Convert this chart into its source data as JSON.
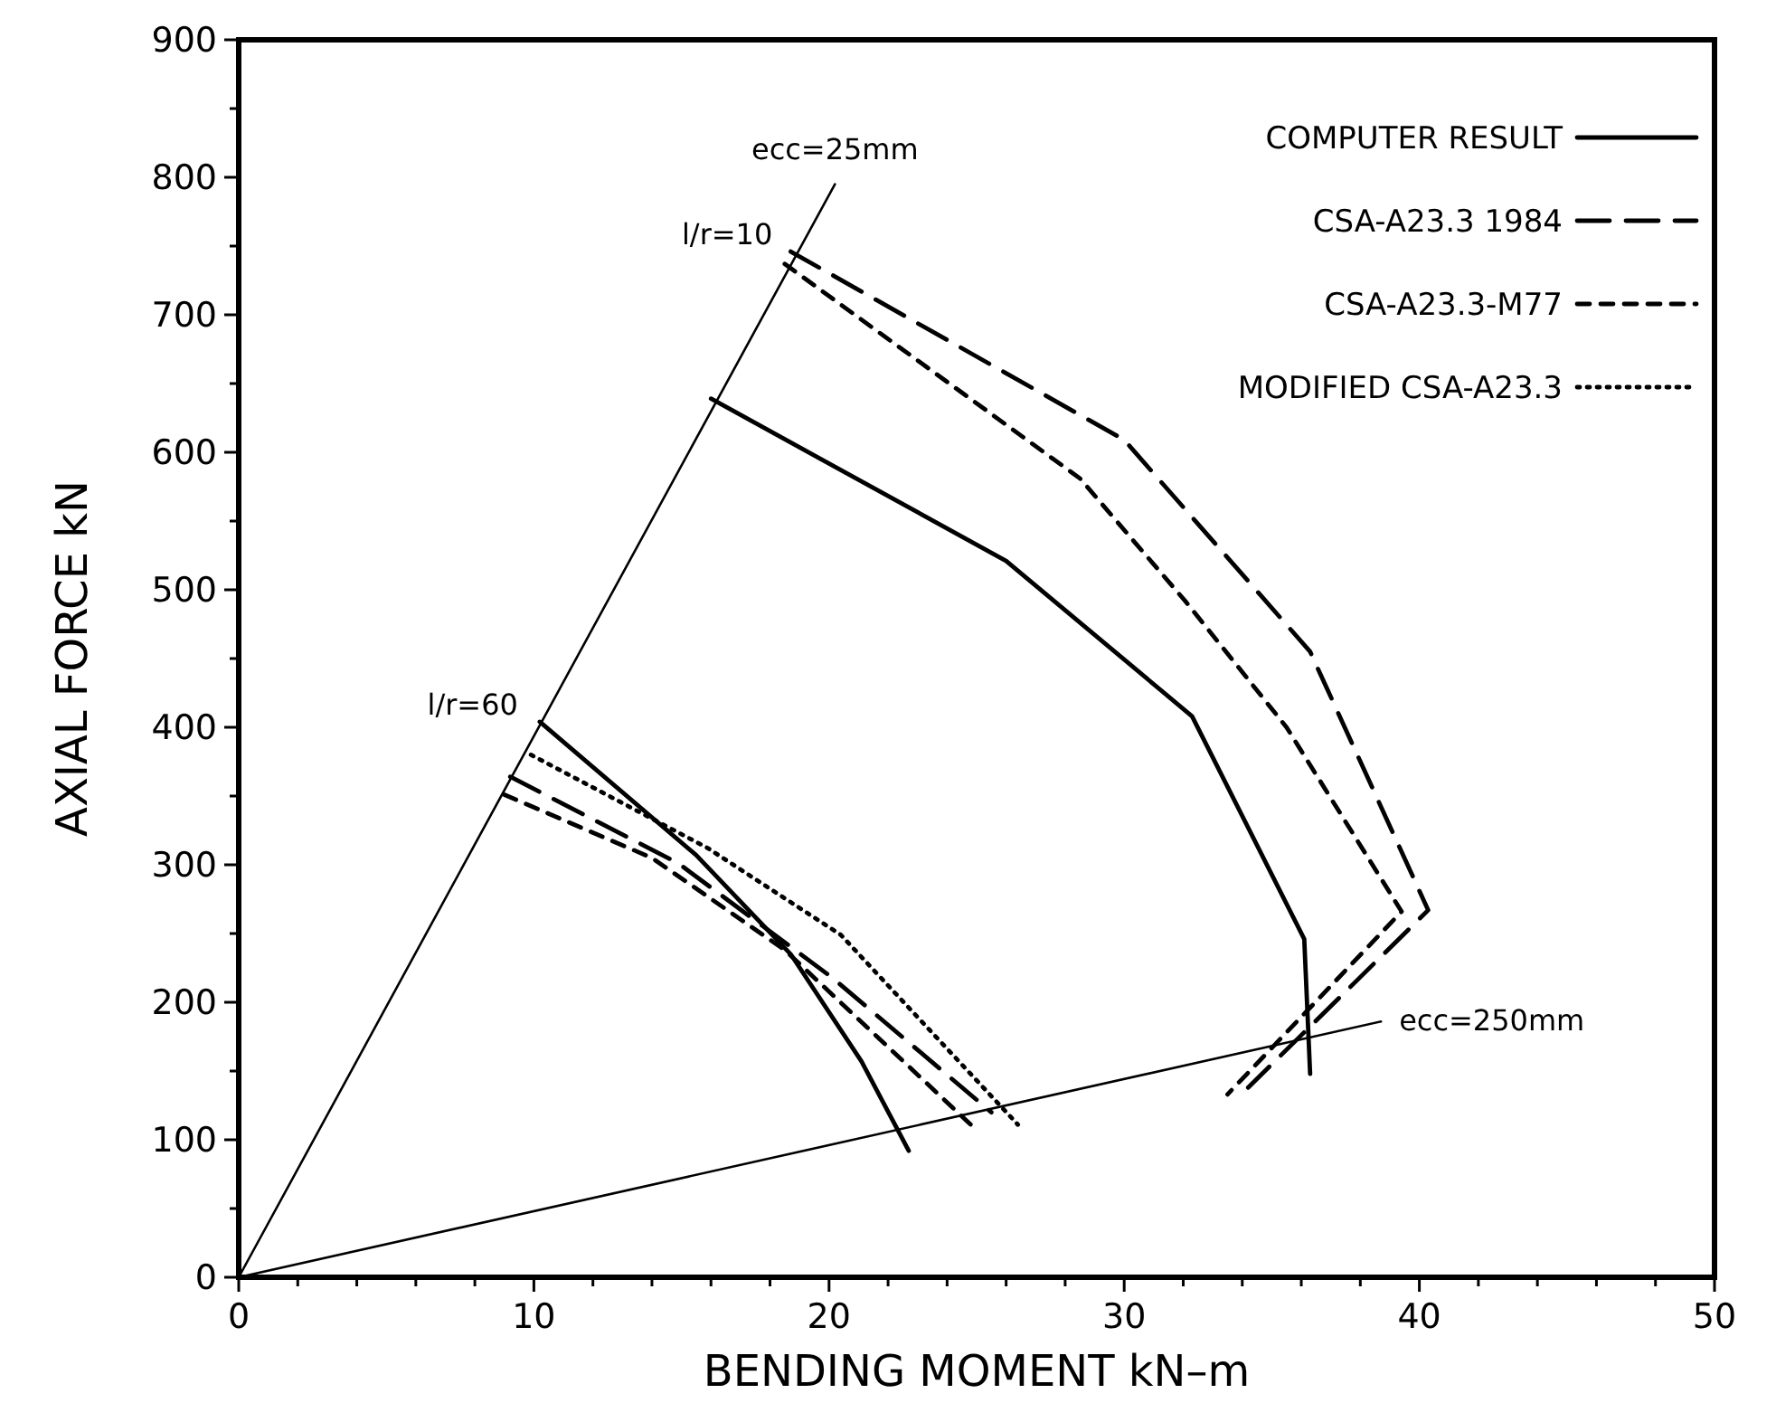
{
  "chart_data": {
    "type": "line",
    "xlabel": "BENDING MOMENT kN–m",
    "ylabel": "AXIAL FORCE kN",
    "xlim": [
      0,
      50
    ],
    "ylim": [
      0,
      900
    ],
    "xticks": [
      0,
      {
        "value": 2,
        "label": null
      },
      {
        "value": 4,
        "label": null
      },
      {
        "value": 6,
        "label": null
      },
      {
        "value": 8,
        "label": null
      },
      10,
      {
        "value": 12,
        "label": null
      },
      {
        "value": 14,
        "label": null
      },
      {
        "value": 16,
        "label": null
      },
      {
        "value": 18,
        "label": null
      },
      20,
      {
        "value": 22,
        "label": null
      },
      {
        "value": 24,
        "label": null
      },
      {
        "value": 26,
        "label": null
      },
      {
        "value": 28,
        "label": null
      },
      30,
      {
        "value": 32,
        "label": null
      },
      {
        "value": 34,
        "label": null
      },
      {
        "value": 36,
        "label": null
      },
      {
        "value": 38,
        "label": null
      },
      40,
      {
        "value": 42,
        "label": null
      },
      {
        "value": 44,
        "label": null
      },
      {
        "value": 46,
        "label": null
      },
      {
        "value": 48,
        "label": null
      },
      50
    ],
    "yticks": [
      0,
      {
        "value": 50,
        "label": null
      },
      100,
      {
        "value": 150,
        "label": null
      },
      200,
      {
        "value": 250,
        "label": null
      },
      300,
      {
        "value": 350,
        "label": null
      },
      400,
      {
        "value": 450,
        "label": null
      },
      500,
      {
        "value": 550,
        "label": null
      },
      600,
      {
        "value": 650,
        "label": null
      },
      700,
      {
        "value": 750,
        "label": null
      },
      800,
      {
        "value": 850,
        "label": null
      },
      900
    ],
    "grid": false,
    "legend": "top right",
    "series": [
      {
        "color": "#000000",
        "line_style": "solid",
        "x": [
          0,
          20.2
        ],
        "values": [
          0,
          795
        ]
      },
      {
        "color": "#000000",
        "line_style": "solid",
        "x": [
          0,
          38.7
        ],
        "values": [
          0,
          186
        ]
      },
      {
        "name": "COMPUTER RESULT",
        "color": "#000000",
        "line_style": "solid",
        "x": [
          16.0,
          26.0,
          32.3,
          36.1,
          36.3
        ],
        "values": [
          639,
          521,
          408,
          246,
          148
        ]
      },
      {
        "color": "#000000",
        "line_style": "solid",
        "x": [
          10.2,
          15.5,
          18.7,
          21.1,
          22.7
        ],
        "values": [
          404,
          307,
          235,
          157,
          92
        ]
      },
      {
        "name": "CSA-A23.3 1984",
        "color": "#000000",
        "line_style": "dashed",
        "x": [
          18.7,
          30.0,
          36.3,
          40.3,
          34.2
        ],
        "values": [
          746,
          609,
          455,
          267,
          138
        ]
      },
      {
        "color": "#000000",
        "line_style": "dashed",
        "x": [
          9.2,
          14.9,
          20.1,
          25.5
        ],
        "values": [
          364,
          301,
          218,
          120
        ]
      },
      {
        "name": "CSA-A23.3-M77",
        "color": "#000000",
        "line_style": "dashed",
        "x": [
          18.5,
          28.5,
          32.1,
          35.5,
          39.4,
          33.5
        ],
        "values": [
          737,
          581,
          491,
          400,
          266,
          133
        ]
      },
      {
        "color": "#000000",
        "line_style": "dashed",
        "x": [
          9.0,
          14.0,
          18.5,
          25.0
        ],
        "values": [
          351,
          305,
          238,
          107
        ]
      },
      {
        "name": "MODIFIED CSA-A23.3",
        "color": "#000000",
        "line_style": "dotted",
        "x": [
          9.9,
          15.9,
          20.4,
          26.4
        ],
        "values": [
          380,
          312,
          249,
          111
        ]
      }
    ],
    "annotations": [
      {
        "text": "ecc=25mm",
        "x": 20.2,
        "y": 795
      },
      {
        "text": "ecc=250mm",
        "x": 38.7,
        "y": 186
      },
      {
        "text": "l/r=10",
        "x": 18.7,
        "y": 746
      },
      {
        "text": "l/r=60",
        "x": 10.2,
        "y": 404
      }
    ]
  }
}
